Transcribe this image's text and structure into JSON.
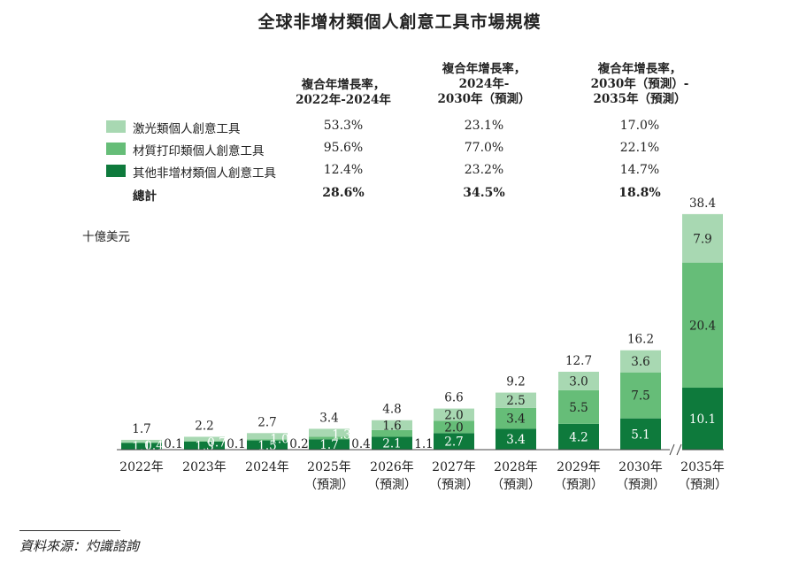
{
  "title": "全球非增材類個人創意工具市場規模",
  "growth_table": {
    "columns": [
      {
        "lines": [
          "複合年增長率，",
          "2022年-2024年"
        ]
      },
      {
        "lines": [
          "複合年增長率，",
          "2024年-",
          "2030年（預測）"
        ]
      },
      {
        "lines": [
          "複合年增長率，",
          "2030年（預測）-",
          "2035年（預測）"
        ]
      }
    ],
    "rows": [
      {
        "label": "激光類個人創意工具",
        "color": "#a8d8b2",
        "values": [
          "53.3%",
          "23.1%",
          "17.0%"
        ]
      },
      {
        "label": "材質打印類個人創意工具",
        "color": "#66bd78",
        "values": [
          "95.6%",
          "77.0%",
          "22.1%"
        ]
      },
      {
        "label": "其他非增材類個人創意工具",
        "color": "#0e7a3c",
        "values": [
          "12.4%",
          "23.2%",
          "14.7%"
        ]
      }
    ],
    "total": {
      "label": "總計",
      "values": [
        "28.6%",
        "34.5%",
        "18.8%"
      ]
    }
  },
  "unit_label": "十億美元",
  "chart_data": {
    "type": "bar",
    "stacked": true,
    "categories": [
      "2022年",
      "2023年",
      "2024年",
      "2025年\n（預測）",
      "2026年\n（預測）",
      "2027年\n（預測）",
      "2028年\n（預測）",
      "2029年\n（預測）",
      "2030年\n（預測）",
      "2035年\n（預測）"
    ],
    "series": [
      {
        "name": "其他非增材類個人創意工具",
        "color": "#0e7a3c",
        "values": [
          1.1,
          1.3,
          1.5,
          1.7,
          2.1,
          2.7,
          3.4,
          4.2,
          5.1,
          10.1
        ],
        "labels": [
          "1.1",
          "1.3",
          "1.5",
          "1.7",
          "2.1",
          "2.7",
          "3.4",
          "4.2",
          "5.1",
          "10.1"
        ]
      },
      {
        "name": "材質打印類個人創意工具",
        "color": "#66bd78",
        "values": [
          0.1,
          0.1,
          0.2,
          0.4,
          1.1,
          2.0,
          3.4,
          5.5,
          7.5,
          20.4
        ],
        "labels": [
          "0.1",
          "0.1",
          "0.2",
          "0.4",
          "1.1",
          "2.0",
          "3.4",
          "5.5",
          "7.5",
          "20.4"
        ]
      },
      {
        "name": "激光類個人創意工具",
        "color": "#a8d8b2",
        "values": [
          0.4,
          0.7,
          1.0,
          1.3,
          1.6,
          2.0,
          2.5,
          3.0,
          3.6,
          7.9
        ],
        "labels": [
          "0.4",
          "0.7",
          "1.0",
          "1.3",
          "1.6",
          "2.0",
          "2.5",
          "3.0",
          "3.6",
          "7.9"
        ]
      }
    ],
    "totals": [
      "1.7",
      "2.2",
      "2.7",
      "3.4",
      "4.8",
      "6.6",
      "9.2",
      "12.7",
      "16.2",
      "38.4"
    ],
    "axis_break": "between 2030年 and 2035年",
    "legend": "top"
  },
  "source": "資料來源：灼識諮詢"
}
